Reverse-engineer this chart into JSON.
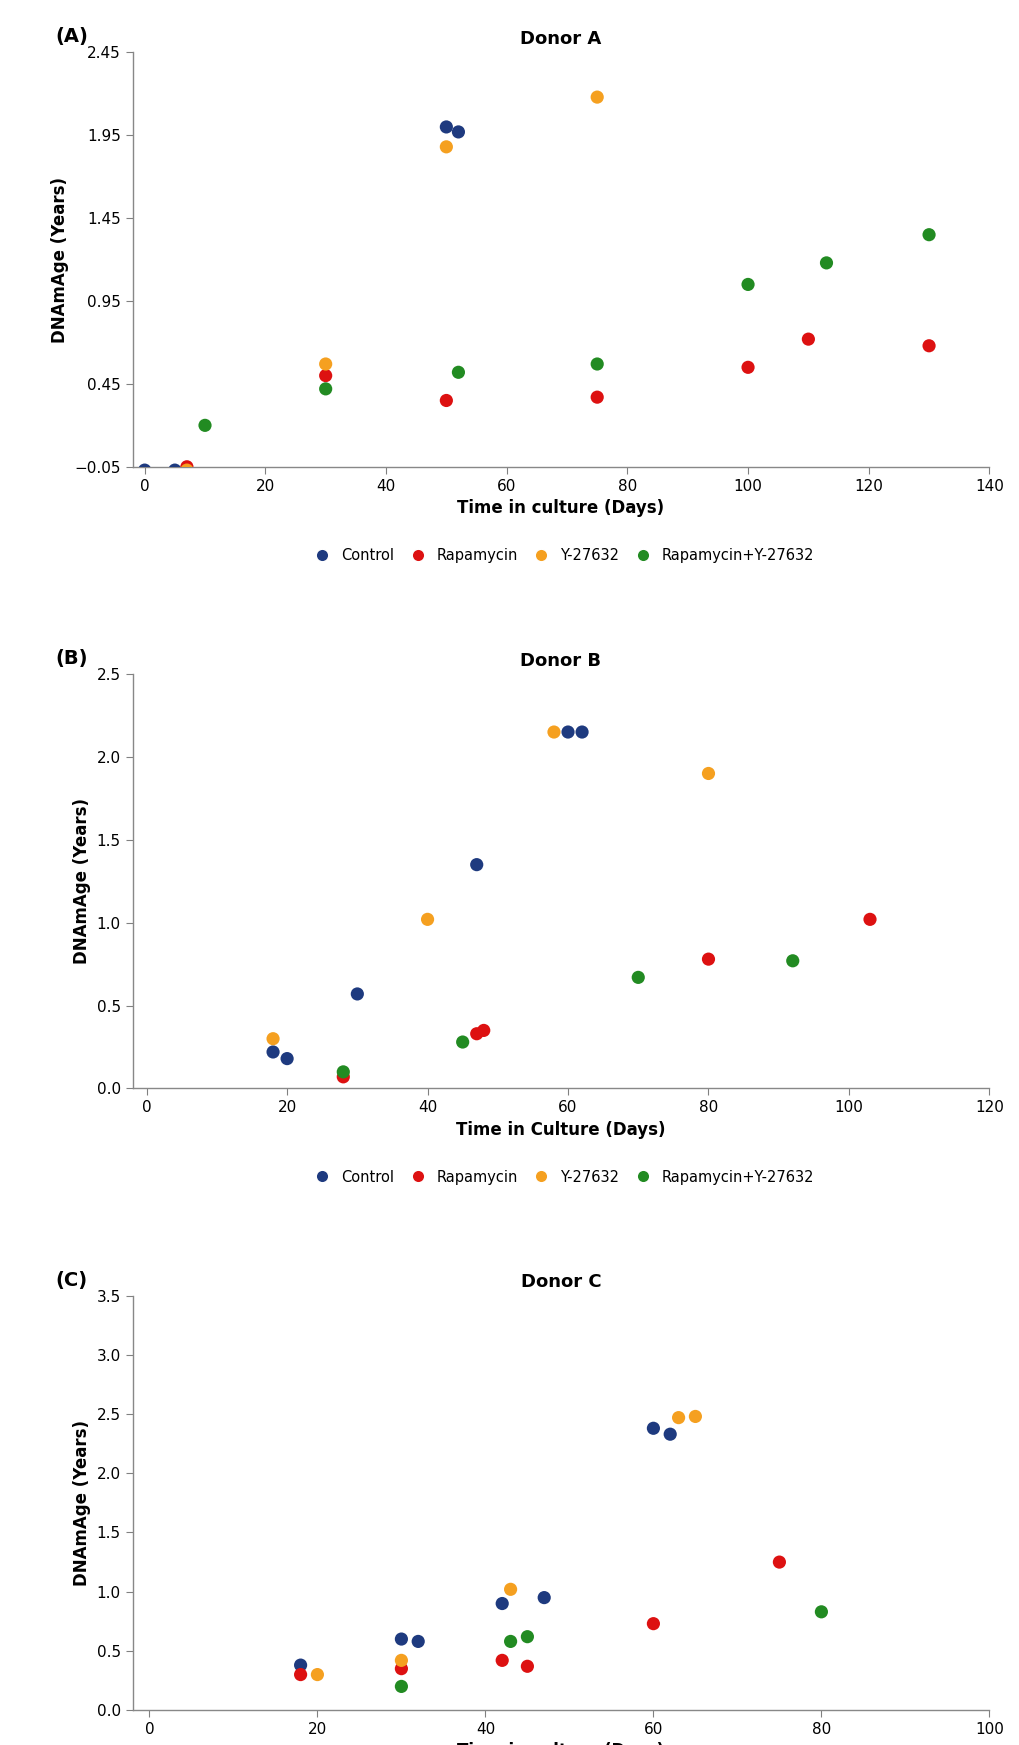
{
  "panels": [
    {
      "label": "(A)",
      "title": "Donor A",
      "xlabel": "Time in culture (Days)",
      "ylabel": "DNAmAge (Years)",
      "xlim": [
        -2,
        140
      ],
      "ylim": [
        -0.05,
        2.45
      ],
      "yticks": [
        -0.05,
        0.45,
        0.95,
        1.45,
        1.95,
        2.45
      ],
      "xticks": [
        0,
        20,
        40,
        60,
        80,
        100,
        120,
        140
      ],
      "series": {
        "Control": {
          "x": [
            0,
            5,
            50,
            52
          ],
          "y": [
            -0.07,
            -0.07,
            2.0,
            1.97
          ]
        },
        "Rapamycin": {
          "x": [
            7,
            30,
            50,
            75,
            100,
            110,
            130
          ],
          "y": [
            -0.05,
            0.5,
            0.35,
            0.37,
            0.55,
            0.72,
            0.68
          ]
        },
        "Y-27632": {
          "x": [
            7,
            30,
            50,
            75
          ],
          "y": [
            -0.07,
            0.57,
            1.88,
            2.18
          ]
        },
        "Rapamycin+Y-27632": {
          "x": [
            10,
            30,
            52,
            75,
            100,
            113,
            130
          ],
          "y": [
            0.2,
            0.42,
            0.52,
            0.57,
            1.05,
            1.18,
            1.35
          ]
        }
      }
    },
    {
      "label": "(B)",
      "title": "Donor B",
      "xlabel": "Time in Culture (Days)",
      "ylabel": "DNAmAge (Years)",
      "xlim": [
        -2,
        120
      ],
      "ylim": [
        0.0,
        2.5
      ],
      "yticks": [
        0.0,
        0.5,
        1.0,
        1.5,
        2.0,
        2.5
      ],
      "xticks": [
        0,
        20,
        40,
        60,
        80,
        100,
        120
      ],
      "series": {
        "Control": {
          "x": [
            18,
            20,
            30,
            47,
            60,
            62
          ],
          "y": [
            0.22,
            0.18,
            0.57,
            1.35,
            2.15,
            2.15
          ]
        },
        "Rapamycin": {
          "x": [
            28,
            47,
            48,
            80,
            103
          ],
          "y": [
            0.07,
            0.33,
            0.35,
            0.78,
            1.02
          ]
        },
        "Y-27632": {
          "x": [
            18,
            40,
            58,
            80
          ],
          "y": [
            0.3,
            1.02,
            2.15,
            1.9
          ]
        },
        "Rapamycin+Y-27632": {
          "x": [
            28,
            45,
            70,
            92
          ],
          "y": [
            0.1,
            0.28,
            0.67,
            0.77
          ]
        }
      }
    },
    {
      "label": "(C)",
      "title": "Donor C",
      "xlabel": "Time in culture (Days)",
      "ylabel": "DNAmAge (Years)",
      "xlim": [
        -2,
        100
      ],
      "ylim": [
        0.0,
        3.5
      ],
      "yticks": [
        0.0,
        0.5,
        1.0,
        1.5,
        2.0,
        2.5,
        3.0,
        3.5
      ],
      "xticks": [
        0,
        20,
        40,
        60,
        80,
        100
      ],
      "series": {
        "Control": {
          "x": [
            18,
            30,
            32,
            42,
            47,
            60,
            62
          ],
          "y": [
            0.38,
            0.6,
            0.58,
            0.9,
            0.95,
            2.38,
            2.33
          ]
        },
        "Rapamycin": {
          "x": [
            18,
            30,
            42,
            45,
            60,
            75
          ],
          "y": [
            0.3,
            0.35,
            0.42,
            0.37,
            0.73,
            1.25
          ]
        },
        "Y-27632": {
          "x": [
            20,
            30,
            43,
            63,
            65
          ],
          "y": [
            0.3,
            0.42,
            1.02,
            2.47,
            2.48
          ]
        },
        "Rapamycin+Y-27632": {
          "x": [
            30,
            43,
            45,
            80
          ],
          "y": [
            0.2,
            0.58,
            0.62,
            0.83
          ]
        }
      }
    }
  ],
  "colors": {
    "Control": "#1e3a7f",
    "Rapamycin": "#dd1111",
    "Y-27632": "#f5a020",
    "Rapamycin+Y-27632": "#228B22"
  },
  "legend_labels": [
    "Control",
    "Rapamycin",
    "Y-27632",
    "Rapamycin+Y-27632"
  ],
  "marker_size": 90,
  "background_color": "#ffffff"
}
